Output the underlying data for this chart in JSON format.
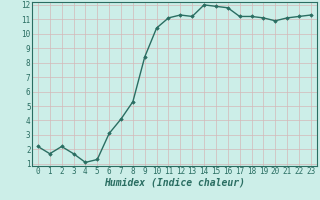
{
  "x": [
    0,
    1,
    2,
    3,
    4,
    5,
    6,
    7,
    8,
    9,
    10,
    11,
    12,
    13,
    14,
    15,
    16,
    17,
    18,
    19,
    20,
    21,
    22,
    23
  ],
  "y": [
    2.2,
    1.7,
    2.2,
    1.7,
    1.1,
    1.3,
    3.1,
    4.1,
    5.3,
    8.4,
    10.4,
    11.1,
    11.3,
    11.2,
    12.0,
    11.9,
    11.8,
    11.2,
    11.2,
    11.1,
    10.9,
    11.1,
    11.2,
    11.3
  ],
  "xlabel": "Humidex (Indice chaleur)",
  "ylim": [
    1,
    12
  ],
  "xlim": [
    0,
    23
  ],
  "yticks": [
    1,
    2,
    3,
    4,
    5,
    6,
    7,
    8,
    9,
    10,
    11,
    12
  ],
  "xticks": [
    0,
    1,
    2,
    3,
    4,
    5,
    6,
    7,
    8,
    9,
    10,
    11,
    12,
    13,
    14,
    15,
    16,
    17,
    18,
    19,
    20,
    21,
    22,
    23
  ],
  "line_color": "#2a6e62",
  "marker": "D",
  "marker_size": 1.8,
  "background_color": "#cceee8",
  "grid_color": "#c0ddd8",
  "axis_color": "#2a6e62",
  "tick_fontsize": 5.5,
  "xlabel_fontsize": 7,
  "linewidth": 1.0
}
